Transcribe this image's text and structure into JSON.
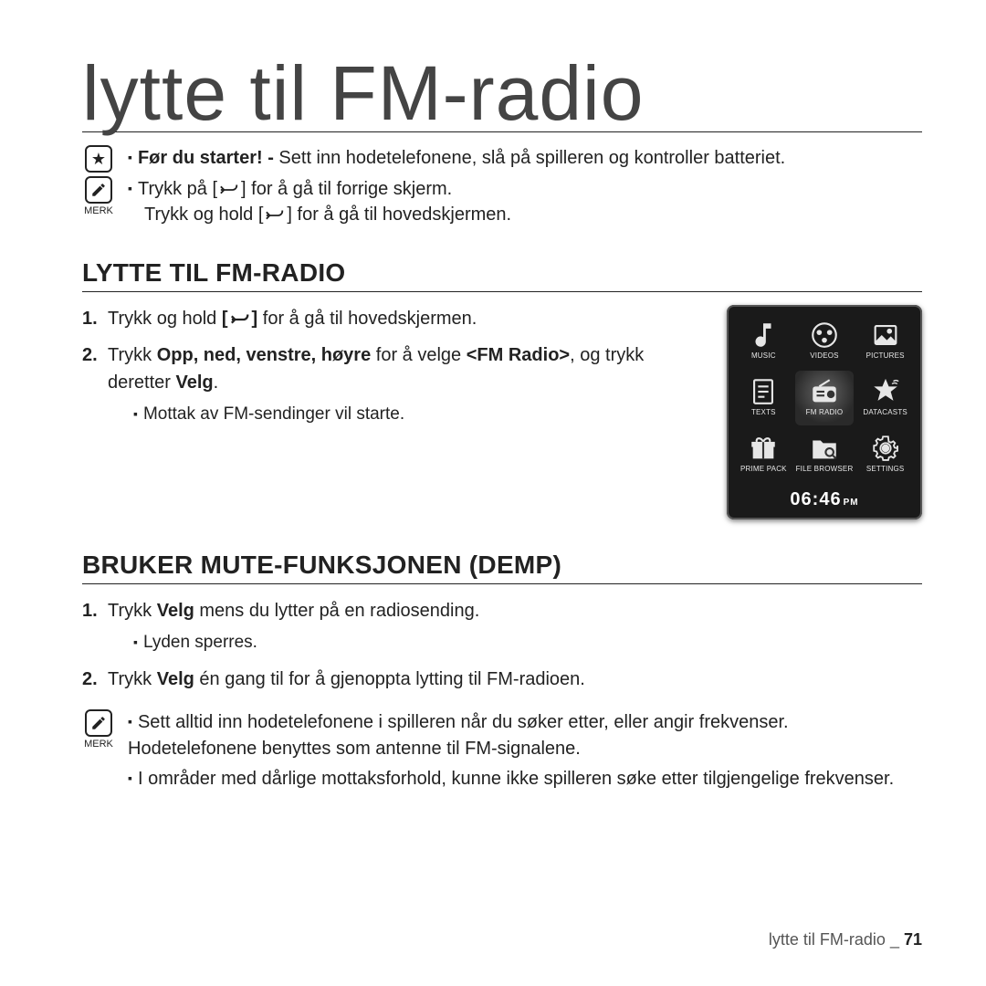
{
  "page": {
    "title": "lytte til FM-radio",
    "footer_label": "lytte til FM-radio",
    "footer_sep": " _ ",
    "page_number": "71"
  },
  "intro": {
    "star_line_prefix": "Før du starter! - ",
    "star_line_rest": "Sett inn hodetelefonene, slå på spilleren og kontroller batteriet.",
    "merk_label": "MERK",
    "note_line1_a": "Trykk på [",
    "note_line1_b": "] for å gå til forrige skjerm.",
    "note_line2_a": "Trykk og hold [",
    "note_line2_b": "] for å gå til hovedskjermen."
  },
  "section1": {
    "heading": "LYTTE TIL FM-RADIO",
    "step1_num": "1.",
    "step1_a": "Trykk og hold ",
    "step1_b_open": "[",
    "step1_b_close": "]",
    "step1_c": " for å gå til hovedskjermen.",
    "step2_num": "2.",
    "step2_a": "Trykk ",
    "step2_bold": "Opp, ned, venstre, høyre",
    "step2_b": " for å velge ",
    "step2_target": "<FM Radio>",
    "step2_c": ", og trykk deretter ",
    "step2_bold2": "Velg",
    "step2_d": ".",
    "sub1": "Mottak av FM-sendinger vil starte."
  },
  "device": {
    "apps": [
      {
        "label": "MUSIC",
        "glyph": "♫"
      },
      {
        "label": "VIDEOS",
        "glyph": "film"
      },
      {
        "label": "PICTURES",
        "glyph": "pic"
      },
      {
        "label": "TEXTS",
        "glyph": "txt"
      },
      {
        "label": "FM RADIO",
        "glyph": "radio",
        "highlight": true
      },
      {
        "label": "DATACASTS",
        "glyph": "star"
      },
      {
        "label": "PRIME PACK",
        "glyph": "gift"
      },
      {
        "label": "FILE BROWSER",
        "glyph": "folder"
      },
      {
        "label": "SETTINGS",
        "glyph": "gear"
      }
    ],
    "time": "06:46",
    "ampm": "PM"
  },
  "section2": {
    "heading": "BRUKER MUTE-FUNKSJONEN (DEMP)",
    "step1_num": "1.",
    "step1_a": "Trykk ",
    "step1_bold": "Velg",
    "step1_b": " mens du lytter på en radiosending.",
    "sub1": "Lyden sperres.",
    "step2_num": "2.",
    "step2_a": "Trykk ",
    "step2_bold": "Velg",
    "step2_b": " én gang til for å gjenoppta lytting til FM-radioen."
  },
  "bottom_note": {
    "merk_label": "MERK",
    "line1": "Sett alltid inn hodetelefonene i spilleren når du søker etter, eller angir frekvenser. Hodetelefonene benyttes som antenne til FM-signalene.",
    "line2": "I områder med dårlige mottaksforhold, kunne ikke spilleren søke etter tilgjengelige frekvenser."
  }
}
